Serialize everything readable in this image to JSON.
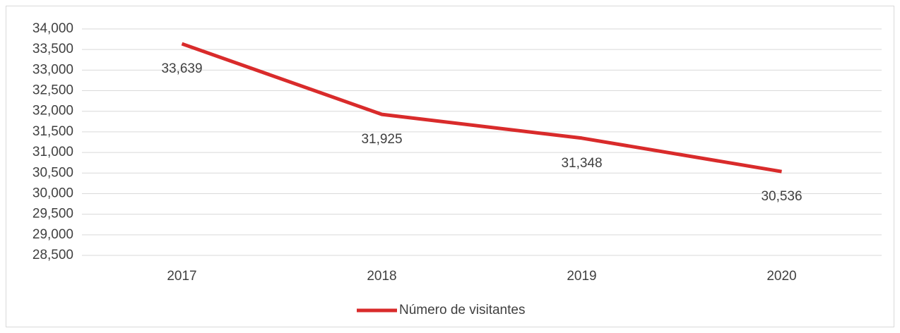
{
  "chart_data": {
    "type": "line",
    "categories": [
      "2017",
      "2018",
      "2019",
      "2020"
    ],
    "series": [
      {
        "name": "Número de visitantes",
        "color": "#d92b2b",
        "values": [
          33639,
          31925,
          31348,
          30536
        ],
        "value_labels": [
          "33,639",
          "31,925",
          "31,348",
          "30,536"
        ]
      }
    ],
    "ylim": [
      28500,
      34000
    ],
    "yticks": [
      {
        "value": 28500,
        "label": "28,500"
      },
      {
        "value": 29000,
        "label": "29,000"
      },
      {
        "value": 29500,
        "label": "29,500"
      },
      {
        "value": 30000,
        "label": "30,000"
      },
      {
        "value": 30500,
        "label": "30,500"
      },
      {
        "value": 31000,
        "label": "31,000"
      },
      {
        "value": 31500,
        "label": "31,500"
      },
      {
        "value": 32000,
        "label": "32,000"
      },
      {
        "value": 32500,
        "label": "32,500"
      },
      {
        "value": 33000,
        "label": "33,000"
      },
      {
        "value": 33500,
        "label": "33,500"
      },
      {
        "value": 34000,
        "label": "34,000"
      }
    ],
    "grid": true,
    "legend": "bottom"
  }
}
